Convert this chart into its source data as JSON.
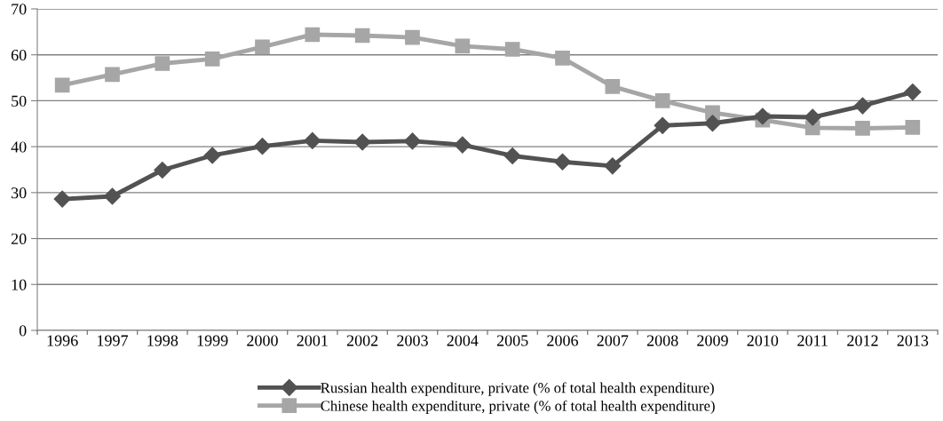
{
  "chart_data": {
    "type": "line",
    "categories": [
      "1996",
      "1997",
      "1998",
      "1999",
      "2000",
      "2001",
      "2002",
      "2003",
      "2004",
      "2005",
      "2006",
      "2007",
      "2008",
      "2009",
      "2010",
      "2011",
      "2012",
      "2013"
    ],
    "series": [
      {
        "name": "Russian health expenditure, private (% of total health expenditure)",
        "color": "#525252",
        "marker": "diamond",
        "values": [
          28.6,
          29.2,
          34.9,
          38.1,
          40.1,
          41.3,
          41.0,
          41.2,
          40.4,
          38.0,
          36.7,
          35.8,
          44.6,
          45.1,
          46.6,
          46.4,
          48.9,
          51.9
        ]
      },
      {
        "name": "Chinese health expenditure, private (% of total health expenditure)",
        "color": "#a6a6a6",
        "marker": "square",
        "values": [
          53.4,
          55.7,
          58.1,
          59.1,
          61.7,
          64.4,
          64.2,
          63.8,
          61.9,
          61.2,
          59.3,
          53.1,
          50.0,
          47.4,
          45.8,
          44.1,
          44.0,
          44.2
        ]
      }
    ],
    "ylim": [
      0,
      70
    ],
    "yticks": [
      0,
      10,
      20,
      30,
      40,
      50,
      60,
      70
    ],
    "grid": "y",
    "legend": "bottom",
    "line_style": "solid"
  }
}
